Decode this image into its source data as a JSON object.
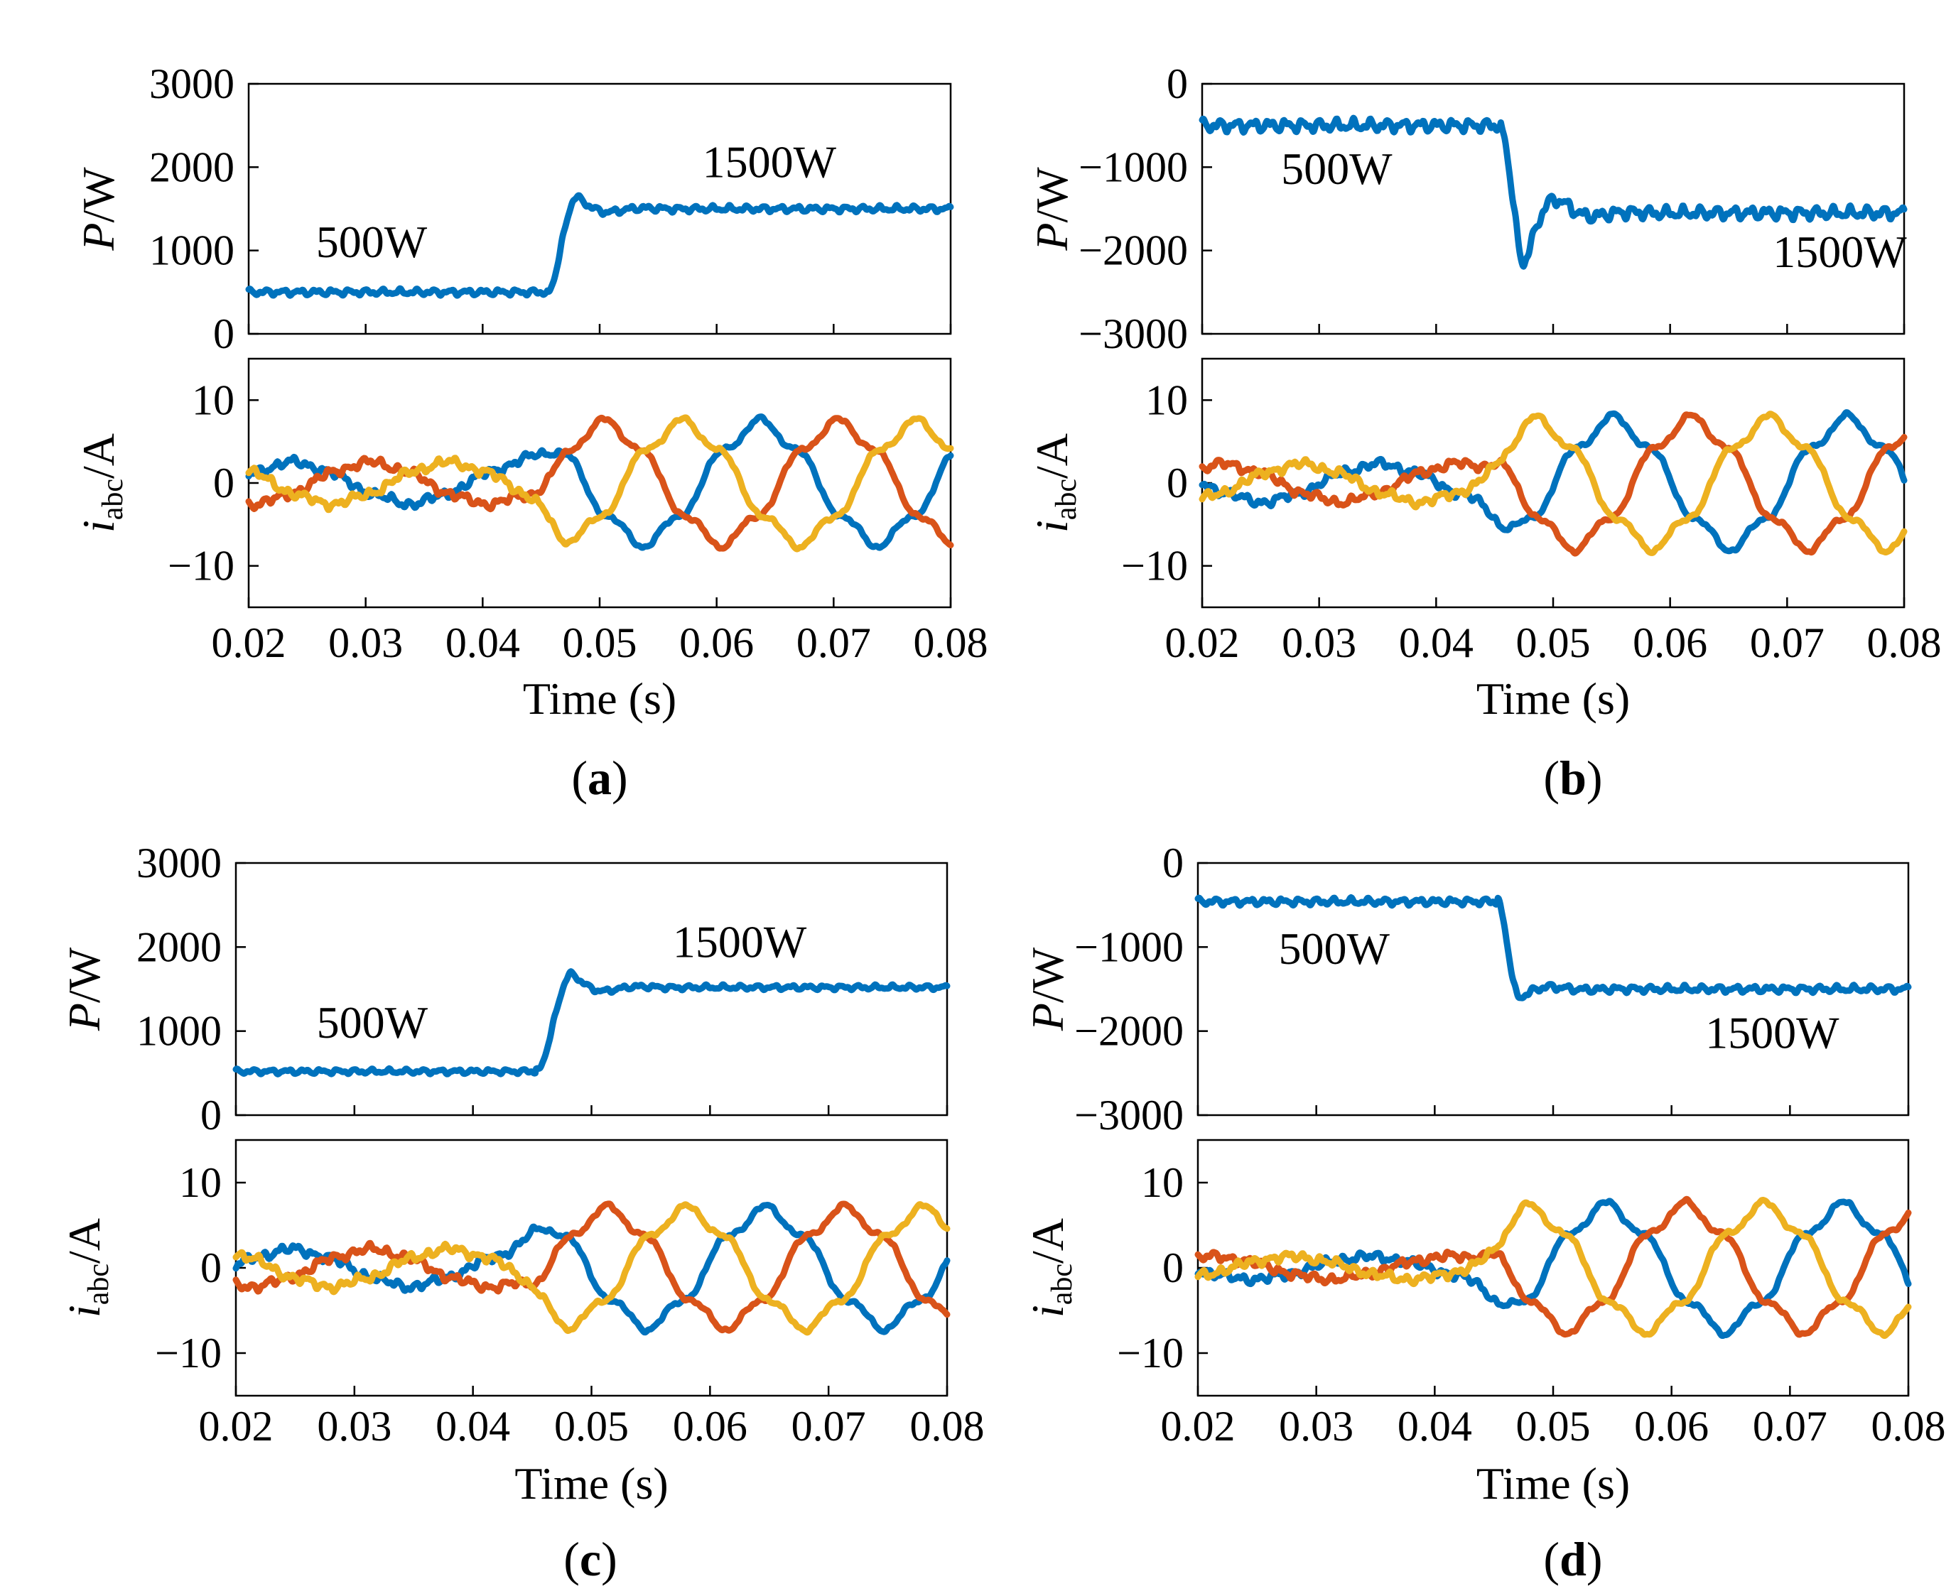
{
  "chart_data": [
    {
      "type": "line",
      "panel": "a",
      "caption": "a",
      "x_range": [
        0.02,
        0.08
      ],
      "x_ticks": [
        0.02,
        0.03,
        0.04,
        0.05,
        0.06,
        0.07,
        0.08
      ],
      "x_tick_labels": [
        "0.02",
        "0.03",
        "0.04",
        "0.05",
        "0.06",
        "0.07",
        "0.08"
      ],
      "xlabel": "Time (s)",
      "power": {
        "ylabel_main": "P",
        "ylabel_unit": "/W",
        "ylim": [
          0,
          3000
        ],
        "y_ticks": [
          0,
          1000,
          2000,
          3000
        ],
        "y_tick_labels": [
          "0",
          "1000",
          "2000",
          "3000"
        ],
        "step_time": 0.0455,
        "initial": 500,
        "final": 1500,
        "overshoot": 1640,
        "ripple": 45,
        "rise": 0.0025,
        "color": "#0072BD",
        "annotations": [
          {
            "text": "500W",
            "x": 0.0305,
            "y": 920
          },
          {
            "text": "1500W",
            "x": 0.0645,
            "y": 1880
          }
        ]
      },
      "current": {
        "ylabel_main": "i",
        "ylabel_sub": "abc",
        "ylabel_unit": "/A",
        "ylim": [
          -15,
          15
        ],
        "y_ticks": [
          -10,
          0,
          10
        ],
        "y_tick_labels": [
          "−10",
          "0",
          "10"
        ],
        "freq": 50,
        "phase_offset": 0.4,
        "amp_before": 2.4,
        "amp_after": 7,
        "step_time": 0.0455,
        "series": [
          {
            "name": "ia",
            "color": "#0072BD",
            "phase": 0
          },
          {
            "name": "ib",
            "color": "#D95319",
            "phase": -120
          },
          {
            "name": "ic",
            "color": "#EDB120",
            "phase": 120
          }
        ]
      }
    },
    {
      "type": "line",
      "panel": "b",
      "caption": "b",
      "x_range": [
        0.02,
        0.08
      ],
      "x_ticks": [
        0.02,
        0.03,
        0.04,
        0.05,
        0.06,
        0.07,
        0.08
      ],
      "x_tick_labels": [
        "0.02",
        "0.03",
        "0.04",
        "0.05",
        "0.06",
        "0.07",
        "0.08"
      ],
      "xlabel": "Time (s)",
      "power": {
        "ylabel_main": "P",
        "ylabel_unit": "/W",
        "ylim": [
          -3000,
          0
        ],
        "y_ticks": [
          -3000,
          -2000,
          -1000,
          0
        ],
        "y_tick_labels": [
          "−3000",
          "−2000",
          "−1000",
          "0"
        ],
        "step_time": 0.0455,
        "initial": -500,
        "final": -1550,
        "overshoot": -2150,
        "ripple": 90,
        "rise": 0.002,
        "color": "#0072BD",
        "annotations": [
          {
            "text": "500W",
            "x": 0.0315,
            "y": -1200
          },
          {
            "text": "1500W",
            "x": 0.0745,
            "y": -2200
          }
        ]
      },
      "current": {
        "ylabel_main": "i",
        "ylabel_sub": "abc",
        "ylabel_unit": "/A",
        "ylim": [
          -15,
          15
        ],
        "y_ticks": [
          -10,
          0,
          10
        ],
        "y_tick_labels": [
          "−10",
          "0",
          "10"
        ],
        "freq": 50,
        "phase_offset": 3.1,
        "amp_before": 2.2,
        "amp_after": 7.4,
        "step_time": 0.0455,
        "series": [
          {
            "name": "ia",
            "color": "#0072BD",
            "phase": 0
          },
          {
            "name": "ib",
            "color": "#D95319",
            "phase": -120
          },
          {
            "name": "ic",
            "color": "#EDB120",
            "phase": 120
          }
        ]
      }
    },
    {
      "type": "line",
      "panel": "c",
      "caption": "c",
      "x_range": [
        0.02,
        0.08
      ],
      "x_ticks": [
        0.02,
        0.03,
        0.04,
        0.05,
        0.06,
        0.07,
        0.08
      ],
      "x_tick_labels": [
        "0.02",
        "0.03",
        "0.04",
        "0.05",
        "0.06",
        "0.07",
        "0.08"
      ],
      "xlabel": "Time (s)",
      "power": {
        "ylabel_main": "P",
        "ylabel_unit": "/W",
        "ylim": [
          0,
          3000
        ],
        "y_ticks": [
          0,
          1000,
          2000,
          3000
        ],
        "y_tick_labels": [
          "0",
          "1000",
          "2000",
          "3000"
        ],
        "step_time": 0.0453,
        "initial": 520,
        "final": 1520,
        "overshoot": 1680,
        "ripple": 35,
        "rise": 0.003,
        "color": "#0072BD",
        "annotations": [
          {
            "text": "500W",
            "x": 0.0315,
            "y": 920
          },
          {
            "text": "1500W",
            "x": 0.0625,
            "y": 1880
          }
        ]
      },
      "current": {
        "ylabel_main": "i",
        "ylabel_sub": "abc",
        "ylabel_unit": "/A",
        "ylim": [
          -15,
          15
        ],
        "y_ticks": [
          -10,
          0,
          10
        ],
        "y_tick_labels": [
          "−10",
          "0",
          "10"
        ],
        "freq": 50,
        "phase_offset": 0.1,
        "amp_before": 2.1,
        "amp_after": 6.6,
        "step_time": 0.0453,
        "series": [
          {
            "name": "ia",
            "color": "#0072BD",
            "phase": 0
          },
          {
            "name": "ib",
            "color": "#D95319",
            "phase": -120
          },
          {
            "name": "ic",
            "color": "#EDB120",
            "phase": 120
          }
        ]
      }
    },
    {
      "type": "line",
      "panel": "d",
      "caption": "d",
      "x_range": [
        0.02,
        0.08
      ],
      "x_ticks": [
        0.02,
        0.03,
        0.04,
        0.05,
        0.06,
        0.07,
        0.08
      ],
      "x_tick_labels": [
        "0.02",
        "0.03",
        "0.04",
        "0.05",
        "0.06",
        "0.07",
        "0.08"
      ],
      "xlabel": "Time (s)",
      "power": {
        "ylabel_main": "P",
        "ylabel_unit": "/W",
        "ylim": [
          -3000,
          0
        ],
        "y_ticks": [
          -3000,
          -2000,
          -1000,
          0
        ],
        "y_tick_labels": [
          "−3000",
          "−2000",
          "−1000",
          "0"
        ],
        "step_time": 0.0453,
        "initial": -460,
        "final": -1500,
        "overshoot": -1600,
        "ripple": 50,
        "rise": 0.0018,
        "color": "#0072BD",
        "annotations": [
          {
            "text": "500W",
            "x": 0.0315,
            "y": -1200
          },
          {
            "text": "1500W",
            "x": 0.0685,
            "y": -2200
          }
        ]
      },
      "current": {
        "ylabel_main": "i",
        "ylabel_sub": "abc",
        "ylabel_unit": "/A",
        "ylim": [
          -15,
          15
        ],
        "y_ticks": [
          -10,
          0,
          10
        ],
        "y_tick_labels": [
          "−10",
          "0",
          "10"
        ],
        "freq": 50,
        "phase_offset": 3.3,
        "amp_before": 1.3,
        "amp_after": 7.0,
        "step_time": 0.0453,
        "series": [
          {
            "name": "ia",
            "color": "#0072BD",
            "phase": 0
          },
          {
            "name": "ib",
            "color": "#D95319",
            "phase": -120
          },
          {
            "name": "ic",
            "color": "#EDB120",
            "phase": 120
          }
        ]
      }
    }
  ]
}
